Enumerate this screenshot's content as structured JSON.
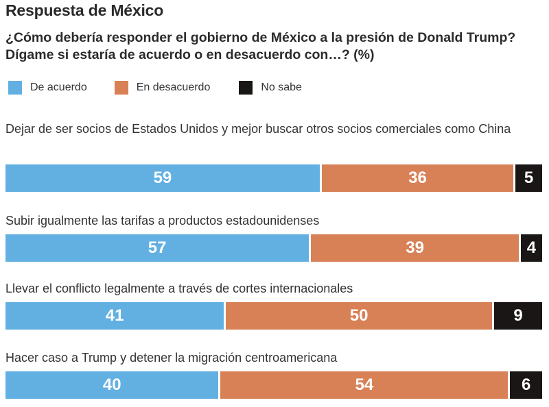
{
  "title": "Respuesta de México",
  "subtitle": "¿Cómo debería responder el gobierno de México a la presión de Donald Trump? Dígame si estaría de acuerdo o en desacuerdo con…? (%)",
  "legend": [
    {
      "label": "De acuerdo",
      "color": "#62b0e2"
    },
    {
      "label": "En desacuerdo",
      "color": "#d88156"
    },
    {
      "label": "No sabe",
      "color": "#1a1616"
    }
  ],
  "chart_data": {
    "type": "bar",
    "orientation": "horizontal",
    "stacked": true,
    "percent": true,
    "categories": [
      "Dejar de ser socios de Estados Unidos y mejor buscar otros socios comerciales como China",
      "Subir igualmente las tarifas a productos estadounidenses",
      "Llevar el conflicto legalmente a través de cortes internacionales",
      "Hacer caso a Trump y detener la migración centroamericana"
    ],
    "series": [
      {
        "name": "De acuerdo",
        "values": [
          59,
          57,
          41,
          40
        ]
      },
      {
        "name": "En desacuerdo",
        "values": [
          36,
          39,
          50,
          54
        ]
      },
      {
        "name": "No sabe",
        "values": [
          5,
          4,
          9,
          6
        ]
      }
    ],
    "title": "Respuesta de México",
    "legend_position": "top-left",
    "grid": false
  }
}
